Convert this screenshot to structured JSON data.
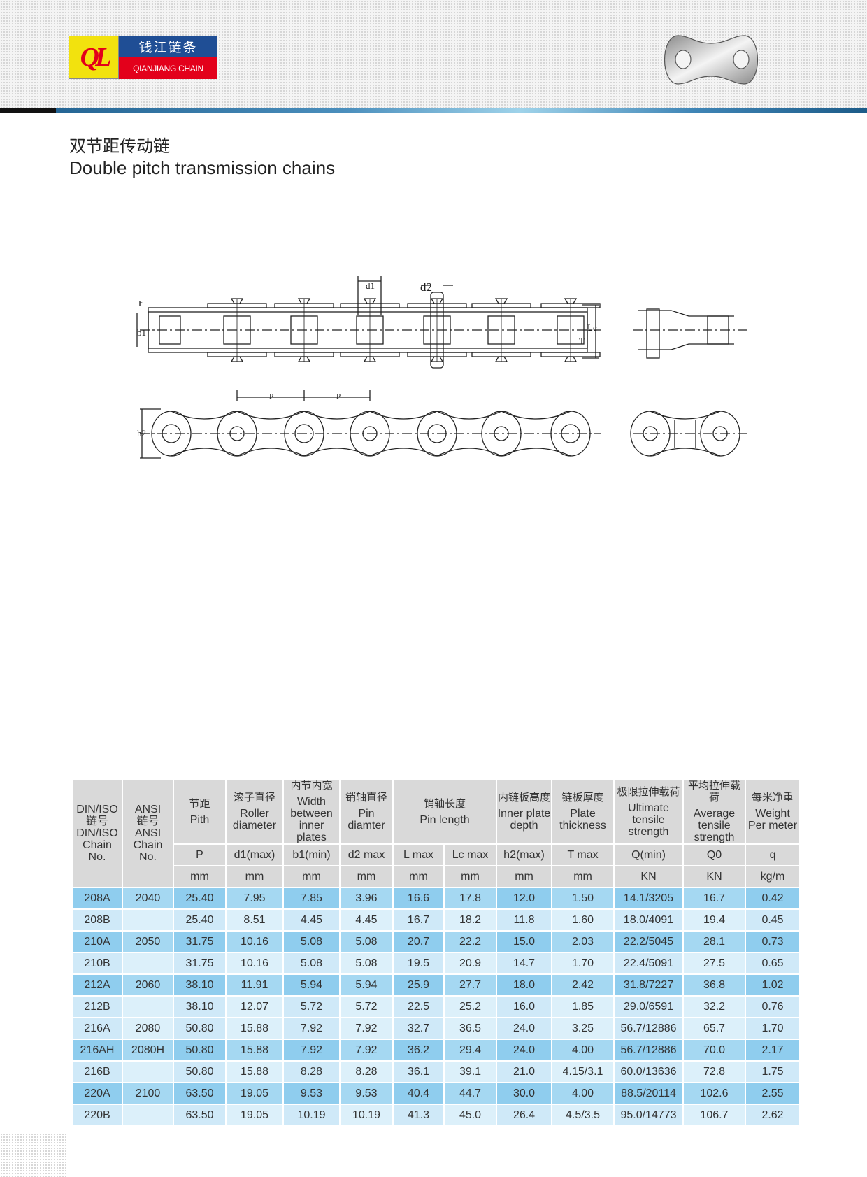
{
  "header": {
    "logo_cn": "钱江链条",
    "logo_en": "QIANJIANG CHAIN",
    "logo_mark": "QL"
  },
  "title": {
    "cn": "双节距传动链",
    "en": "Double pitch transmission chains"
  },
  "diagram": {
    "labels": {
      "t": "t",
      "b1": "b1",
      "d1": "d1",
      "d2": "d2",
      "Lc": "Lc",
      "T": "T",
      "p1": "P",
      "p2": "P",
      "h2": "h2"
    }
  },
  "table": {
    "col0": {
      "cn1": "DIN/ISO",
      "cn2": "链号",
      "en1": "DIN/ISO",
      "en2": "Chain",
      "en3": "No."
    },
    "col1": {
      "cn1": "ANSI",
      "cn2": "链号",
      "en1": "ANSI",
      "en2": "Chain",
      "en3": "No."
    },
    "groups": [
      {
        "cn": "节距",
        "en": "Pith"
      },
      {
        "cn": "滚子直径",
        "en": "Roller diameter"
      },
      {
        "cn": "内节内宽",
        "en": "Width between inner plates"
      },
      {
        "cn": "销轴直径",
        "en": "Pin diamter"
      },
      {
        "cn": "销轴长度",
        "en": "Pin length"
      },
      {
        "cn": "内链板高度",
        "en": "Inner plate depth"
      },
      {
        "cn": "链板厚度",
        "en": "Plate thickness"
      },
      {
        "cn": "极限拉伸载荷",
        "en": "Ultimate tensile strength"
      },
      {
        "cn": "平均拉伸载荷",
        "en": "Average tensile strength"
      },
      {
        "cn": "每米净重",
        "en": "Weight Per meter"
      }
    ],
    "symbols": [
      "P",
      "d1(max)",
      "b1(min)",
      "d2 max",
      "L max",
      "Lc max",
      "h2(max)",
      "T max",
      "Q(min)",
      "Q0",
      "q"
    ],
    "units": [
      "mm",
      "mm",
      "mm",
      "mm",
      "mm",
      "mm",
      "mm",
      "mm",
      "KN",
      "KN",
      "kg/m"
    ],
    "rows": [
      [
        "208A",
        "2040",
        "25.40",
        "7.95",
        "7.85",
        "3.96",
        "16.6",
        "17.8",
        "12.0",
        "1.50",
        "14.1/3205",
        "16.7",
        "0.42"
      ],
      [
        "208B",
        "",
        "25.40",
        "8.51",
        "4.45",
        "4.45",
        "16.7",
        "18.2",
        "11.8",
        "1.60",
        "18.0/4091",
        "19.4",
        "0.45"
      ],
      [
        "210A",
        "2050",
        "31.75",
        "10.16",
        "5.08",
        "5.08",
        "20.7",
        "22.2",
        "15.0",
        "2.03",
        "22.2/5045",
        "28.1",
        "0.73"
      ],
      [
        "210B",
        "",
        "31.75",
        "10.16",
        "5.08",
        "5.08",
        "19.5",
        "20.9",
        "14.7",
        "1.70",
        "22.4/5091",
        "27.5",
        "0.65"
      ],
      [
        "212A",
        "2060",
        "38.10",
        "11.91",
        "5.94",
        "5.94",
        "25.9",
        "27.7",
        "18.0",
        "2.42",
        "31.8/7227",
        "36.8",
        "1.02"
      ],
      [
        "212B",
        "",
        "38.10",
        "12.07",
        "5.72",
        "5.72",
        "22.5",
        "25.2",
        "16.0",
        "1.85",
        "29.0/6591",
        "32.2",
        "0.76"
      ],
      [
        "216A",
        "2080",
        "50.80",
        "15.88",
        "7.92",
        "7.92",
        "32.7",
        "36.5",
        "24.0",
        "3.25",
        "56.7/12886",
        "65.7",
        "1.70"
      ],
      [
        "216AH",
        "2080H",
        "50.80",
        "15.88",
        "7.92",
        "7.92",
        "36.2",
        "29.4",
        "24.0",
        "4.00",
        "56.7/12886",
        "70.0",
        "2.17"
      ],
      [
        "216B",
        "",
        "50.80",
        "15.88",
        "8.28",
        "8.28",
        "36.1",
        "39.1",
        "21.0",
        "4.15/3.1",
        "60.0/13636",
        "72.8",
        "1.75"
      ],
      [
        "220A",
        "2100",
        "63.50",
        "19.05",
        "9.53",
        "9.53",
        "40.4",
        "44.7",
        "30.0",
        "4.00",
        "88.5/20114",
        "102.6",
        "2.55"
      ],
      [
        "220B",
        "",
        "63.50",
        "19.05",
        "10.19",
        "10.19",
        "41.3",
        "45.0",
        "26.4",
        "4.5/3.5",
        "95.0/14773",
        "106.7",
        "2.62"
      ]
    ]
  }
}
